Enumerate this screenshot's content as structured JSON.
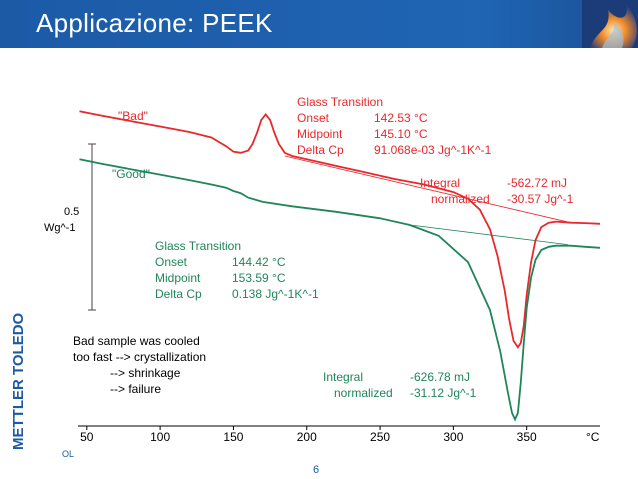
{
  "slide": {
    "title": "Applicazione: PEEK",
    "footer_left": "OL",
    "page_number": "6",
    "brand_text": "METTLER TOLEDO"
  },
  "colors": {
    "header_blue": "#1c5aa6",
    "bad_red": "#e8282b",
    "good_green": "#21855a"
  },
  "chart_data": {
    "type": "line",
    "title": "",
    "xlabel": "°C",
    "ylabel": "Wg^-1",
    "scale_bar": {
      "value": "0.5",
      "unit": "Wg^-1"
    },
    "x_ticks": [
      "50",
      "100",
      "150",
      "200",
      "250",
      "300",
      "350"
    ],
    "x_tick_values": [
      50,
      100,
      150,
      200,
      250,
      300,
      350
    ],
    "x_unit_label": "°C",
    "xlim": [
      44,
      400
    ],
    "ylim": [
      -0.56,
      1.0
    ],
    "series": [
      {
        "name": "\"Bad\"",
        "color": "#e8282b",
        "x": [
          45,
          60,
          80,
          100,
          120,
          135,
          145,
          150,
          155,
          160,
          163,
          166,
          169,
          172,
          175,
          178,
          181,
          185,
          190,
          200,
          220,
          240,
          260,
          280,
          300,
          310,
          318,
          325,
          330,
          335,
          338,
          341,
          344,
          346,
          348,
          350,
          353,
          356,
          360,
          365,
          370,
          380,
          390,
          400
        ],
        "y": [
          0.88,
          0.86,
          0.835,
          0.81,
          0.785,
          0.76,
          0.72,
          0.695,
          0.69,
          0.7,
          0.73,
          0.78,
          0.84,
          0.865,
          0.84,
          0.78,
          0.73,
          0.69,
          0.675,
          0.66,
          0.63,
          0.6,
          0.57,
          0.545,
          0.51,
          0.48,
          0.43,
          0.34,
          0.22,
          0.06,
          -0.07,
          -0.17,
          -0.2,
          -0.18,
          -0.1,
          0.04,
          0.19,
          0.29,
          0.35,
          0.37,
          0.375,
          0.37,
          0.368,
          0.365
        ],
        "baseline": {
          "x": [
            185,
            380
          ],
          "y": [
            0.675,
            0.37
          ]
        }
      },
      {
        "name": "\"Good\"",
        "color": "#21855a",
        "x": [
          45,
          60,
          80,
          100,
          120,
          135,
          145,
          150,
          155,
          160,
          170,
          190,
          220,
          250,
          270,
          290,
          310,
          325,
          332,
          337,
          340,
          342,
          344,
          346,
          348,
          350,
          353,
          356,
          360,
          365,
          370,
          380,
          390,
          400
        ],
        "y": [
          0.66,
          0.64,
          0.615,
          0.59,
          0.565,
          0.545,
          0.53,
          0.515,
          0.505,
          0.485,
          0.465,
          0.445,
          0.42,
          0.39,
          0.36,
          0.31,
          0.19,
          -0.03,
          -0.22,
          -0.4,
          -0.5,
          -0.53,
          -0.5,
          -0.36,
          -0.18,
          -0.02,
          0.12,
          0.2,
          0.245,
          0.26,
          0.265,
          0.265,
          0.26,
          0.255
        ],
        "baseline": {
          "x": [
            270,
            378
          ],
          "y": [
            0.36,
            0.27
          ]
        }
      }
    ],
    "series_labels": [
      "\"Bad\"",
      "\"Good\""
    ],
    "annotations": {
      "bad_glass_transition": {
        "title": "Glass Transition",
        "rows": [
          {
            "label": "Onset",
            "value": "142.53 °C"
          },
          {
            "label": "Midpoint",
            "value": "145.10 °C"
          },
          {
            "label": "Delta Cp",
            "value": "91.068e-03 Jg^-1K^-1"
          }
        ]
      },
      "bad_integral": {
        "rows": [
          {
            "label": "Integral",
            "value": "-562.72 mJ"
          },
          {
            "label": "normalized",
            "value": "-30.57 Jg^-1"
          }
        ]
      },
      "good_glass_transition": {
        "title": "Glass Transition",
        "rows": [
          {
            "label": "Onset",
            "value": "144.42 °C"
          },
          {
            "label": "Midpoint",
            "value": "153.59 °C"
          },
          {
            "label": "Delta Cp",
            "value": "0.138 Jg^-1K^-1"
          }
        ]
      },
      "good_integral": {
        "rows": [
          {
            "label": "Integral",
            "value": "-626.78 mJ"
          },
          {
            "label": "normalized",
            "value": "-31.12 Jg^-1"
          }
        ]
      },
      "note": [
        "Bad sample was cooled",
        "too fast --> crystallization",
        "--> shrinkage",
        "--> failure"
      ]
    }
  }
}
